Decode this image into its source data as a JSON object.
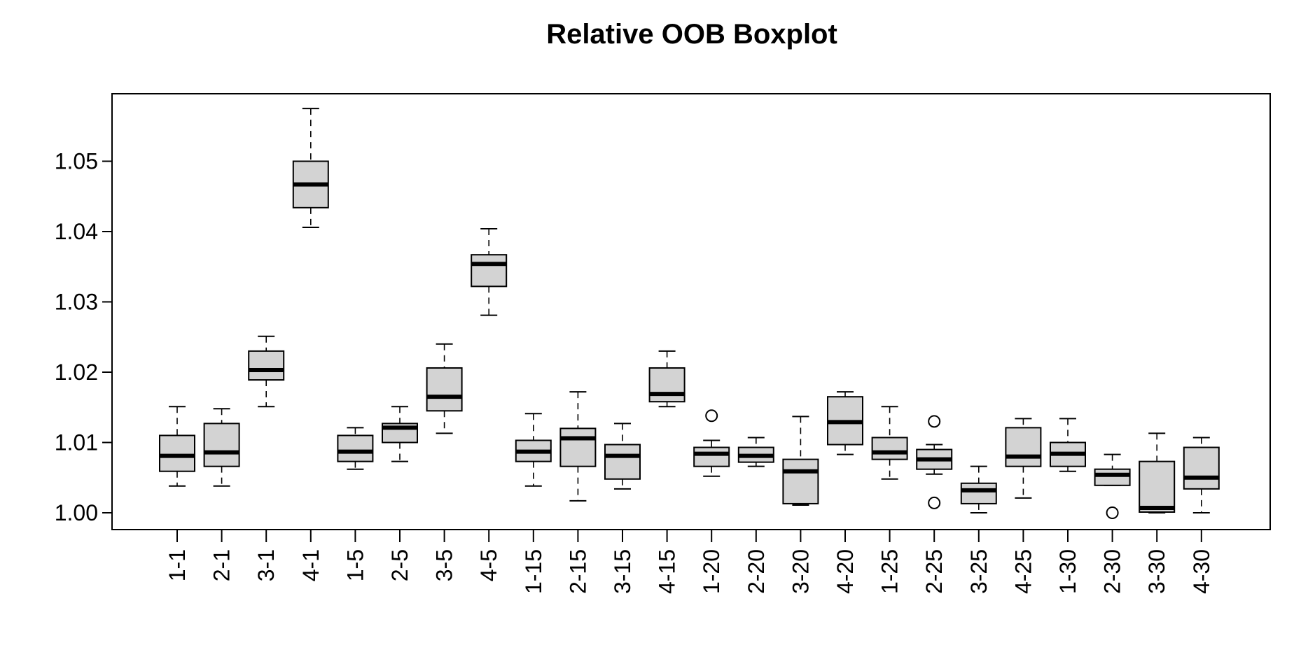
{
  "chart_data": {
    "type": "boxplot",
    "title": "Relative OOB Boxplot",
    "xlabel": "",
    "ylabel": "",
    "ylim": [
      0.9978,
      1.0598
    ],
    "y_ticks": [
      "1.00",
      "1.01",
      "1.02",
      "1.03",
      "1.04",
      "1.05"
    ],
    "grid": false,
    "legend": "none",
    "box_fill": "#d3d3d3",
    "line_color": "#000000",
    "categories": [
      "1-1",
      "2-1",
      "3-1",
      "4-1",
      "1-5",
      "2-5",
      "3-5",
      "4-5",
      "1-15",
      "2-15",
      "3-15",
      "4-15",
      "1-20",
      "2-20",
      "3-20",
      "4-20",
      "1-25",
      "2-25",
      "3-25",
      "4-25",
      "1-30",
      "2-30",
      "3-30",
      "4-30"
    ],
    "boxes": [
      {
        "min": 1.0038,
        "q1": 1.0059,
        "median": 1.0081,
        "q3": 1.011,
        "max": 1.0151,
        "outliers": []
      },
      {
        "min": 1.0038,
        "q1": 1.0066,
        "median": 1.0086,
        "q3": 1.0127,
        "max": 1.0148,
        "outliers": []
      },
      {
        "min": 1.0151,
        "q1": 1.0189,
        "median": 1.0203,
        "q3": 1.023,
        "max": 1.0251,
        "outliers": []
      },
      {
        "min": 1.0406,
        "q1": 1.0434,
        "median": 1.0467,
        "q3": 1.05,
        "max": 1.0575,
        "outliers": []
      },
      {
        "min": 1.0062,
        "q1": 1.0073,
        "median": 1.0087,
        "q3": 1.011,
        "max": 1.0121,
        "outliers": []
      },
      {
        "min": 1.0073,
        "q1": 1.01,
        "median": 1.0121,
        "q3": 1.0127,
        "max": 1.0151,
        "outliers": []
      },
      {
        "min": 1.0113,
        "q1": 1.0145,
        "median": 1.0165,
        "q3": 1.0206,
        "max": 1.024,
        "outliers": []
      },
      {
        "min": 1.0281,
        "q1": 1.0322,
        "median": 1.0354,
        "q3": 1.0367,
        "max": 1.0404,
        "outliers": []
      },
      {
        "min": 1.0038,
        "q1": 1.0073,
        "median": 1.0087,
        "q3": 1.0103,
        "max": 1.0141,
        "outliers": []
      },
      {
        "min": 1.0017,
        "q1": 1.0066,
        "median": 1.0106,
        "q3": 1.012,
        "max": 1.0172,
        "outliers": []
      },
      {
        "min": 1.0034,
        "q1": 1.0048,
        "median": 1.0081,
        "q3": 1.0097,
        "max": 1.0127,
        "outliers": []
      },
      {
        "min": 1.0151,
        "q1": 1.0158,
        "median": 1.0169,
        "q3": 1.0206,
        "max": 1.023,
        "outliers": []
      },
      {
        "min": 1.0052,
        "q1": 1.0066,
        "median": 1.0084,
        "q3": 1.0093,
        "max": 1.0103,
        "outliers": [
          1.0138
        ]
      },
      {
        "min": 1.0066,
        "q1": 1.0072,
        "median": 1.0081,
        "q3": 1.0093,
        "max": 1.0107,
        "outliers": []
      },
      {
        "min": 1.0011,
        "q1": 1.0013,
        "median": 1.0059,
        "q3": 1.0076,
        "max": 1.0137,
        "outliers": []
      },
      {
        "min": 1.0083,
        "q1": 1.0097,
        "median": 1.0129,
        "q3": 1.0165,
        "max": 1.0172,
        "outliers": []
      },
      {
        "min": 1.0048,
        "q1": 1.0076,
        "median": 1.0086,
        "q3": 1.0107,
        "max": 1.0151,
        "outliers": []
      },
      {
        "min": 1.0055,
        "q1": 1.0062,
        "median": 1.0076,
        "q3": 1.009,
        "max": 1.0097,
        "outliers": [
          1.013,
          1.0014
        ]
      },
      {
        "min": 1.0,
        "q1": 1.0013,
        "median": 1.0032,
        "q3": 1.0042,
        "max": 1.0066,
        "outliers": []
      },
      {
        "min": 1.0021,
        "q1": 1.0066,
        "median": 1.008,
        "q3": 1.0121,
        "max": 1.0134,
        "outliers": []
      },
      {
        "min": 1.0059,
        "q1": 1.0066,
        "median": 1.0084,
        "q3": 1.01,
        "max": 1.0134,
        "outliers": []
      },
      {
        "min": 1.0039,
        "q1": 1.0039,
        "median": 1.0054,
        "q3": 1.0062,
        "max": 1.0083,
        "outliers": [
          1.0
        ]
      },
      {
        "min": 1.0,
        "q1": 1.0001,
        "median": 1.0007,
        "q3": 1.0073,
        "max": 1.0113,
        "outliers": []
      },
      {
        "min": 1.0,
        "q1": 1.0034,
        "median": 1.005,
        "q3": 1.0093,
        "max": 1.0107,
        "outliers": []
      }
    ]
  }
}
